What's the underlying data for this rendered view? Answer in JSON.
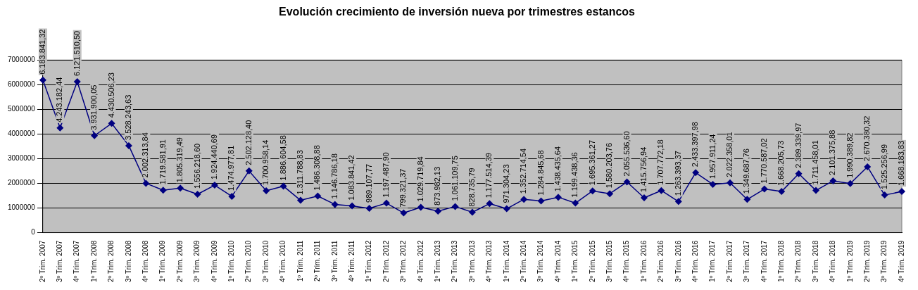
{
  "chart_data": {
    "type": "line",
    "title": "Evolución crecimiento de inversión nueva por trimestres estancos",
    "categories": [
      "2º Trim. 2007",
      "3º Trim. 2007",
      "4º Trim. 2007",
      "1º Trim. 2008",
      "2º Trim. 2008",
      "3º Trim. 2008",
      "4º Trim. 2008",
      "1º Trim. 2009",
      "2º Trim. 2009",
      "3º Trim. 2009",
      "4º Trim. 2009",
      "1º Trim. 2010",
      "2º Trim. 2010",
      "3º Trim. 2010",
      "4º Trim. 2010",
      "1º Trim. 2011",
      "2º Trim. 2011",
      "3º Trim. 2011",
      "4º Trim. 2011",
      "1º Trim. 2012",
      "2º Trim. 2012",
      "3º Trim. 2012",
      "4º Trim. 2012",
      "1º Trim. 2013",
      "2º Trim. 2013",
      "3º Trim. 2013",
      "4º Trim. 2013",
      "1º Trim. 2014",
      "2º Trim. 2014",
      "3º Trim. 2014",
      "4º Trim. 2014",
      "1º Trim. 2015",
      "2º Trim. 2015",
      "3º Trim. 2015",
      "4º Trim. 2015",
      "1º Trim. 2016",
      "2º Trim. 2016",
      "3º Trim. 2016",
      "4º Trim. 2016",
      "1º Trim. 2017",
      "2º Trim. 2017",
      "3º Trim. 2017",
      "4º Trim. 2017",
      "1º Trim. 2018",
      "2º Trim. 2018",
      "3º Trim. 2018",
      "4º Trim. 2018",
      "1º Trim. 2019",
      "2º Trim. 2019",
      "3º Trim. 2019",
      "4º Trim. 2019"
    ],
    "series": [
      {
        "color": "#000080",
        "values": [
          6183841.32,
          4243182.44,
          6121510.5,
          3931900.05,
          4430506.23,
          3528243.63,
          2002313.84,
          1719581.91,
          1805319.49,
          1556218.6,
          1924440.69,
          1474977.81,
          2502128.4,
          1700958.14,
          1886604.58,
          1311788.83,
          1486308.88,
          1146786.18,
          1083841.42,
          989107.77,
          1197487.9,
          799321.37,
          1029719.84,
          873982.13,
          1061109.75,
          828735.79,
          1177514.39,
          971304.23,
          1352714.54,
          1284845.68,
          1438435.64,
          1199438.36,
          1695361.27,
          1580203.76,
          2055536.6,
          1415756.94,
          1707772.18,
          1263393.37,
          2433397.98,
          1957911.24,
          2022358.01,
          1349687.76,
          1770587.02,
          1668205.73,
          2389339.97,
          1711458.01,
          2101375.88,
          1990389.82,
          2670380.32,
          1525256.99,
          1668183.83
        ],
        "value_labels": [
          "6.183.841,32",
          "4.243.182,44",
          "6.121.510,50",
          "3.931.900,05",
          "4.430.506,23",
          "3.528.243,63",
          "2.002.313,84",
          "1.719.581,91",
          "1.805.319,49",
          "1.556.218,60",
          "1.924.440,69",
          "1.474.977,81",
          "2.502.128,40",
          "1.700.958,14",
          "1.886.604,58",
          "1.311.788,83",
          "1.486.308,88",
          "1.146.786,18",
          "1.083.841,42",
          "989.107,77",
          "1.197.487,90",
          "799.321,37",
          "1.029.719,84",
          "873.982,13",
          "1.061.109,75",
          "828.735,79",
          "1.177.514,39",
          "971.304,23",
          "1.352.714,54",
          "1.284.845,68",
          "1.438.435,64",
          "1.199.438,36",
          "1.695.361,27",
          "1.580.203,76",
          "2.055.536,60",
          "1.415.756,94",
          "1.707.772,18",
          "1.263.393,37",
          "2.433.397,98",
          "1.957.911,24",
          "2.022.358,01",
          "1.349.687,76",
          "1.770.587,02",
          "1.668.205,73",
          "2.389.339,97",
          "1.711.458,01",
          "2.101.375,88",
          "1.990.389,82",
          "2.670.380,32",
          "1.525.256,99",
          "1.668.183,83"
        ]
      }
    ],
    "ylim": [
      0,
      7000000
    ],
    "yticks": [
      0,
      1000000,
      2000000,
      3000000,
      4000000,
      5000000,
      6000000,
      7000000
    ],
    "grid": "y",
    "legend": false,
    "marker": "diamond",
    "line_style": "solid"
  }
}
